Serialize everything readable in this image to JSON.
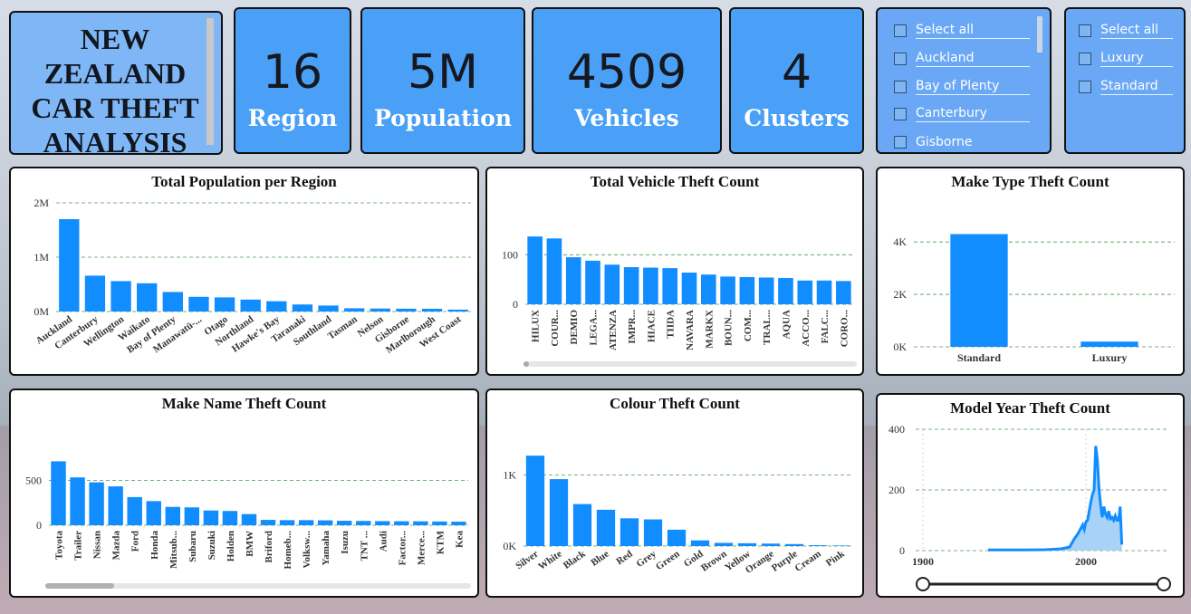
{
  "header": {
    "title": "NEW ZEALAND CAR THEFT ANALYSIS",
    "kpis": [
      {
        "value": "16",
        "label": "Region"
      },
      {
        "value": "5M",
        "label": "Population"
      },
      {
        "value": "4509",
        "label": "Vehicles"
      },
      {
        "value": "4",
        "label": "Clusters"
      }
    ]
  },
  "slicers": {
    "region": [
      "Select all",
      "Auckland",
      "Bay of Plenty",
      "Canterbury",
      "Gisborne"
    ],
    "make_type": [
      "Select all",
      "Luxury",
      "Standard"
    ]
  },
  "colors": {
    "bar": "#118dff",
    "kpi": "#4aa0f7",
    "grid": "#4c9a4c"
  },
  "chart_data": [
    {
      "type": "bar",
      "title": "Total Population per Region",
      "categories": [
        "Auckland",
        "Canterbury",
        "Wellington",
        "Waikato",
        "Bay of Plenty",
        "Manawatū-...",
        "Otago",
        "Northland",
        "Hawke's Bay",
        "Taranaki",
        "Southland",
        "Tasman",
        "Nelson",
        "Gisborne",
        "Marlborough",
        "West Coast"
      ],
      "values": [
        1700000,
        660000,
        560000,
        520000,
        360000,
        270000,
        260000,
        220000,
        190000,
        130000,
        110000,
        60000,
        55000,
        52000,
        51000,
        35000
      ],
      "yticks": [
        "0M",
        "1M",
        "2M"
      ],
      "ylim": [
        0,
        2000000
      ]
    },
    {
      "type": "bar",
      "title": "Total Vehicle Theft Count",
      "categories": [
        "HILUX",
        "COUR...",
        "DEMIO",
        "LEGA...",
        "ATENZA",
        "IMPR...",
        "HIACE",
        "TIIDA",
        "NAVARA",
        "MARKX",
        "BOUN...",
        "COM...",
        "TRAL...",
        "AQUA",
        "ACCO...",
        "FALC...",
        "CORO..."
      ],
      "values": [
        137,
        133,
        95,
        88,
        80,
        75,
        74,
        73,
        64,
        60,
        56,
        55,
        54,
        53,
        48,
        48,
        47
      ],
      "yticks": [
        "0",
        "100"
      ],
      "ylim": [
        0,
        150
      ]
    },
    {
      "type": "bar",
      "title": "Make Type Theft Count",
      "categories": [
        "Standard",
        "Luxury"
      ],
      "values": [
        4300,
        200
      ],
      "yticks": [
        "0K",
        "2K",
        "4K"
      ],
      "ylim": [
        0,
        4800
      ]
    },
    {
      "type": "bar",
      "title": "Make Name Theft Count",
      "categories": [
        "Toyota",
        "Trailer",
        "Nissan",
        "Mazda",
        "Ford",
        "Honda",
        "Mitsub...",
        "Subaru",
        "Suzuki",
        "Holden",
        "BMW",
        "Briford",
        "Homeb...",
        "Volksw...",
        "Yamaha",
        "Isuzu",
        "TNT ...",
        "Audi",
        "Factor...",
        "Merce...",
        "KTM",
        "Kea"
      ],
      "values": [
        715,
        535,
        480,
        435,
        315,
        270,
        205,
        200,
        165,
        160,
        125,
        60,
        57,
        57,
        55,
        50,
        48,
        46,
        45,
        44,
        42,
        40
      ],
      "yticks": [
        "0",
        "500"
      ],
      "ylim": [
        0,
        800
      ]
    },
    {
      "type": "bar",
      "title": "Colour Theft Count",
      "categories": [
        "Silver",
        "White",
        "Black",
        "Blue",
        "Red",
        "Grey",
        "Green",
        "Gold",
        "Brown",
        "Yellow",
        "Orange",
        "Purple",
        "Cream",
        "Pink"
      ],
      "values": [
        1270,
        940,
        590,
        510,
        390,
        375,
        230,
        80,
        45,
        40,
        35,
        28,
        12,
        8
      ],
      "yticks": [
        "0K",
        "1K"
      ],
      "ylim": [
        0,
        1450
      ]
    },
    {
      "type": "area",
      "title": "Model Year Theft Count",
      "x": [
        1940,
        1960,
        1975,
        1985,
        1990,
        1993,
        1995,
        1997,
        1998,
        1999,
        2000,
        2001,
        2002,
        2003,
        2004,
        2005,
        2006,
        2007,
        2008,
        2009,
        2010,
        2011,
        2012,
        2013,
        2014,
        2015,
        2016,
        2017,
        2018,
        2019,
        2020,
        2021,
        2022
      ],
      "y": [
        2,
        2,
        3,
        6,
        12,
        40,
        55,
        75,
        85,
        70,
        95,
        100,
        130,
        160,
        185,
        200,
        345,
        300,
        205,
        150,
        110,
        145,
        120,
        110,
        130,
        105,
        110,
        100,
        115,
        100,
        100,
        145,
        20
      ],
      "xticks": [
        "1900",
        "2000"
      ],
      "yticks": [
        "0",
        "200",
        "400"
      ],
      "xlim": [
        1900,
        2050
      ],
      "ylim": [
        0,
        400
      ]
    }
  ]
}
